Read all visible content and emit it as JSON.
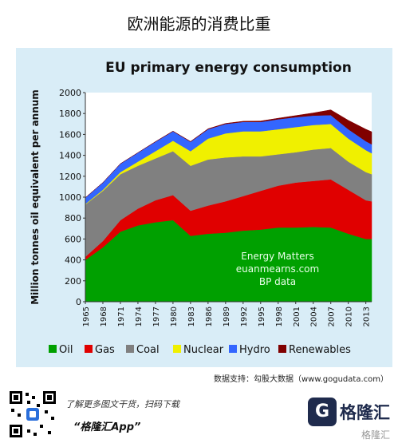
{
  "page": {
    "title": "欧洲能源的消费比重",
    "source_line": "数据支持：勾股大数据（www.gogudata.com）"
  },
  "chart_data": {
    "type": "area",
    "stacked": true,
    "title": "EU primary energy consumption",
    "ylabel": "Million tonnes oil equivalent per annum",
    "xlabel": "",
    "ylim": [
      0,
      2000
    ],
    "yticks": [
      0,
      200,
      400,
      600,
      800,
      1000,
      1200,
      1400,
      1600,
      1800,
      2000
    ],
    "xticks": [
      1965,
      1968,
      1971,
      1974,
      1977,
      1980,
      1983,
      1986,
      1989,
      1992,
      1995,
      1998,
      2001,
      2004,
      2007,
      2010,
      2013
    ],
    "xlim": [
      1965,
      2014
    ],
    "grid": false,
    "legend_position": "bottom",
    "annotation": [
      "Energy Matters",
      "euanmearns.com",
      "BP data"
    ],
    "x": [
      1965,
      1968,
      1971,
      1974,
      1977,
      1980,
      1983,
      1986,
      1989,
      1992,
      1995,
      1998,
      2001,
      2004,
      2007,
      2010,
      2013,
      2014
    ],
    "series": [
      {
        "name": "Oil",
        "color": "#00a000",
        "values": [
          400,
          520,
          670,
          730,
          760,
          780,
          630,
          650,
          660,
          680,
          690,
          710,
          710,
          715,
          710,
          650,
          600,
          600
        ]
      },
      {
        "name": "Gas",
        "color": "#e00000",
        "values": [
          30,
          60,
          110,
          160,
          210,
          240,
          240,
          270,
          300,
          330,
          370,
          400,
          430,
          440,
          460,
          420,
          370,
          360
        ]
      },
      {
        "name": "Coal",
        "color": "#808080",
        "values": [
          500,
          480,
          440,
          410,
          400,
          420,
          430,
          440,
          420,
          380,
          330,
          300,
          290,
          300,
          300,
          270,
          270,
          260
        ]
      },
      {
        "name": "Nuclear",
        "color": "#f0f000",
        "values": [
          5,
          10,
          20,
          40,
          70,
          100,
          140,
          200,
          230,
          240,
          240,
          240,
          240,
          235,
          230,
          220,
          210,
          200
        ]
      },
      {
        "name": "Hydro",
        "color": "#3366ff",
        "values": [
          60,
          70,
          80,
          85,
          90,
          90,
          90,
          90,
          90,
          90,
          90,
          95,
          95,
          90,
          85,
          90,
          85,
          85
        ]
      },
      {
        "name": "Renewables",
        "color": "#800000",
        "values": [
          0,
          0,
          0,
          0,
          1,
          2,
          3,
          4,
          5,
          6,
          8,
          10,
          15,
          25,
          50,
          85,
          115,
          120
        ]
      }
    ]
  },
  "footer": {
    "line1": "了解更多图文干货，扫码下载",
    "line2": "“格隆汇App”",
    "brand_name": "格隆汇",
    "brand_mark": "G",
    "watermark": "格隆汇"
  }
}
